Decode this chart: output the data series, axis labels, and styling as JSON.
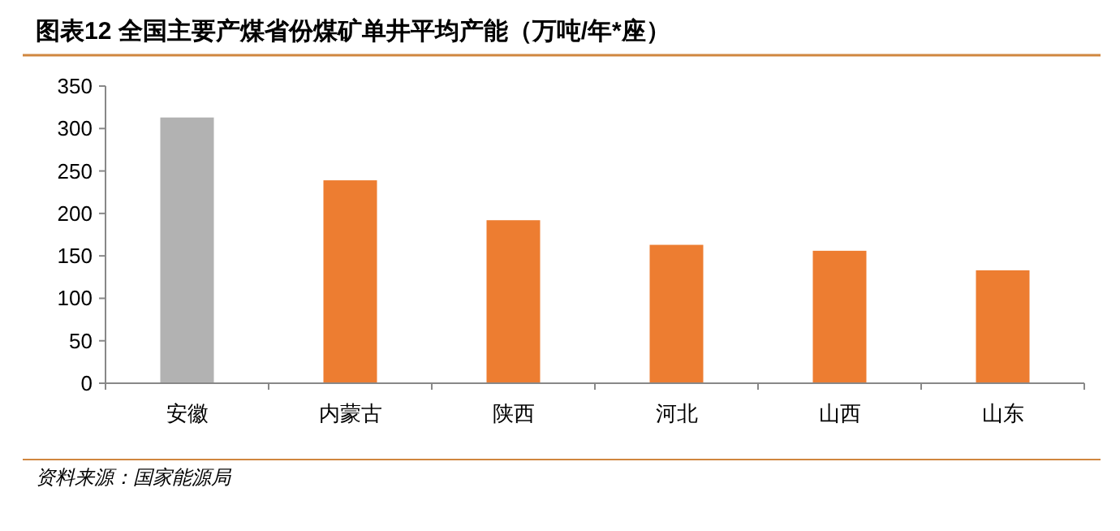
{
  "chart_data": {
    "type": "bar",
    "title": "图表12   全国主要产煤省份煤矿单井平均产能（万吨/年*座）",
    "categories": [
      "安徽",
      "内蒙古",
      "陕西",
      "河北",
      "山西",
      "山东"
    ],
    "values": [
      313,
      239,
      192,
      163,
      156,
      133
    ],
    "colors": [
      "#b2b2b2",
      "#ed7d31",
      "#ed7d31",
      "#ed7d31",
      "#ed7d31",
      "#ed7d31"
    ],
    "ylim": [
      0,
      350
    ],
    "yticks": [
      0,
      50,
      100,
      150,
      200,
      250,
      300,
      350
    ],
    "annotations": [
      "资料来源：国家能源局"
    ]
  }
}
